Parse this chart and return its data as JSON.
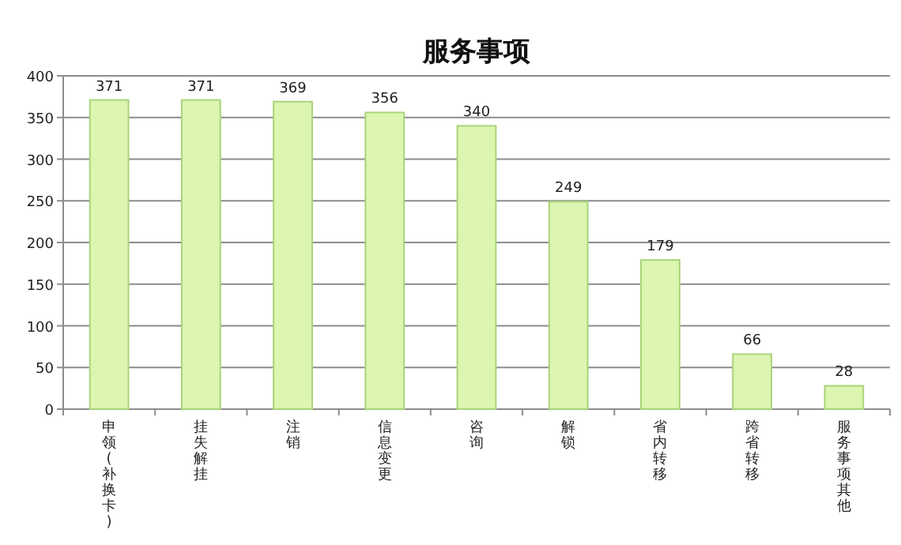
{
  "chart_data": {
    "type": "bar",
    "title": "服务事项",
    "categories": [
      "申领(补换卡)",
      "挂失解挂",
      "注销",
      "信息变更",
      "咨询",
      "解锁",
      "省内转移",
      "跨省转移",
      "服务事项其他"
    ],
    "values": [
      371,
      371,
      369,
      356,
      340,
      249,
      179,
      66,
      28
    ],
    "color": "#dcf5b0",
    "data_labels": true,
    "ylim": [
      0,
      400
    ],
    "yticks": [
      0,
      50,
      100,
      150,
      200,
      250,
      300,
      350,
      400
    ],
    "grid": "y"
  }
}
